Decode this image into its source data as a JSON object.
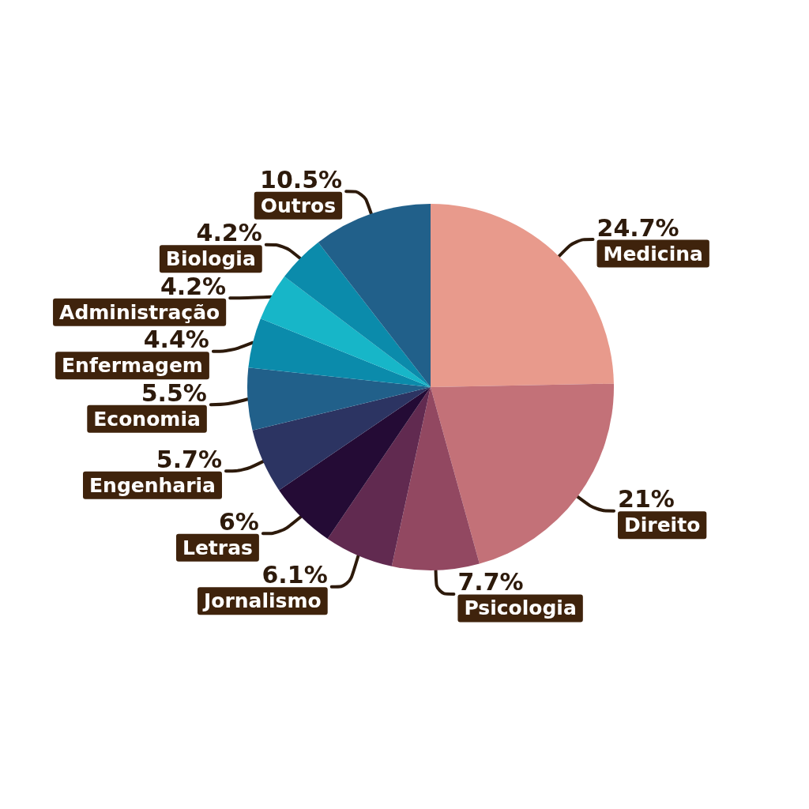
{
  "chart_data": {
    "type": "pie",
    "categories": [
      "Medicina",
      "Direito",
      "Psicologia",
      "Jornalismo",
      "Letras",
      "Engenharia",
      "Economia",
      "Enfermagem",
      "Administração",
      "Biologia",
      "Outros"
    ],
    "values": [
      24.7,
      21,
      7.7,
      6.1,
      6,
      5.7,
      5.5,
      4.4,
      4.2,
      4.2,
      10.5
    ],
    "colors": [
      "#e89a8c",
      "#c37178",
      "#924861",
      "#612a50",
      "#240b35",
      "#2c3462",
      "#21608a",
      "#0b8bab",
      "#17b6c8",
      "#0b8bab",
      "#21608a"
    ],
    "value_labels": [
      "24.7%",
      "21%",
      "7.7%",
      "6.1%",
      "6%",
      "5.7%",
      "5.5%",
      "4.4%",
      "4.2%",
      "4.2%",
      "10.5%"
    ]
  }
}
